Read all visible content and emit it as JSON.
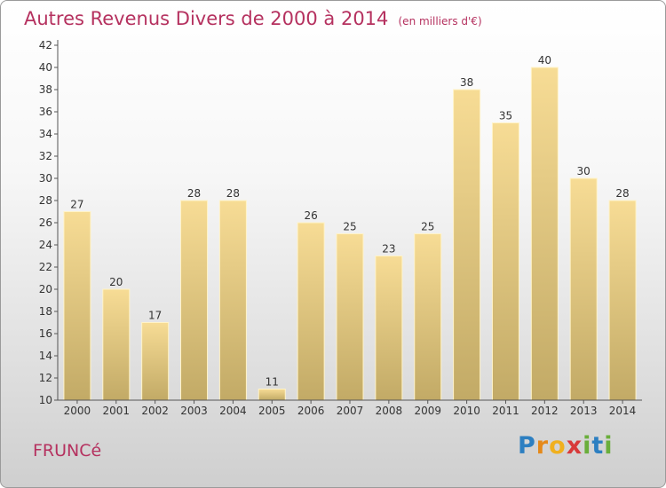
{
  "title": "Autres Revenus Divers de 2000 à 2014",
  "unit": "(en milliers d'€)",
  "commune": "FRUNCé",
  "logo": [
    "P",
    "r",
    "o",
    "x",
    "i",
    "t",
    "i"
  ],
  "colors": {
    "title": "#b5315f",
    "bar_top": "#f7dc95",
    "bar_bottom": "#c2aa66",
    "axis": "#555555",
    "logo": [
      "#2d7fc1",
      "#e5891a",
      "#f0b01e",
      "#d83a3a",
      "#6aae3b",
      "#2d7fc1",
      "#6aae3b"
    ]
  },
  "chart_data": {
    "type": "bar",
    "categories": [
      "2000",
      "2001",
      "2002",
      "2003",
      "2004",
      "2005",
      "2006",
      "2007",
      "2008",
      "2009",
      "2010",
      "2011",
      "2012",
      "2013",
      "2014"
    ],
    "values": [
      27,
      20,
      17,
      28,
      28,
      11,
      26,
      25,
      23,
      25,
      38,
      35,
      40,
      30,
      28
    ],
    "ylim": [
      10,
      42
    ],
    "yticks": [
      10,
      12,
      14,
      16,
      18,
      20,
      22,
      24,
      26,
      28,
      30,
      32,
      34,
      36,
      38,
      40,
      42
    ],
    "grid": false,
    "title": "Autres Revenus Divers de 2000 à 2014",
    "xlabel": "",
    "ylabel": ""
  }
}
